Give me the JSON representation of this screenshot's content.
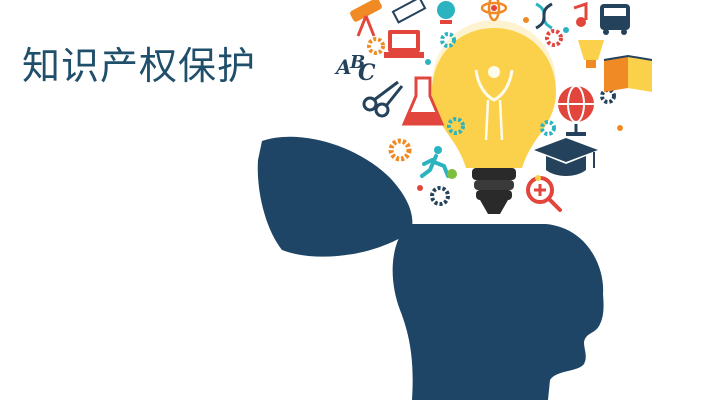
{
  "title": "知识产权保护",
  "illustration": {
    "letters": [
      "A",
      "B",
      "C"
    ],
    "icons": [
      "telescope-icon",
      "ruler-icon",
      "globe-icon",
      "atom-icon",
      "dna-icon",
      "music-note-icon",
      "bus-icon",
      "computer-icon",
      "gear-icon",
      "trophy-icon",
      "book-icon",
      "scissors-icon",
      "flask-icon",
      "world-globe-icon",
      "graduation-cap-icon",
      "running-person-icon",
      "magnifier-icon",
      "light-bulb-icon",
      "open-head-icon"
    ]
  },
  "colors": {
    "title": "#1f4f6b",
    "head": "#1e4566",
    "bulb": "#fbd14b",
    "accent_orange": "#f08a24",
    "accent_red": "#e2453c",
    "accent_teal": "#2bb3c0",
    "accent_green": "#7cbf3f"
  }
}
